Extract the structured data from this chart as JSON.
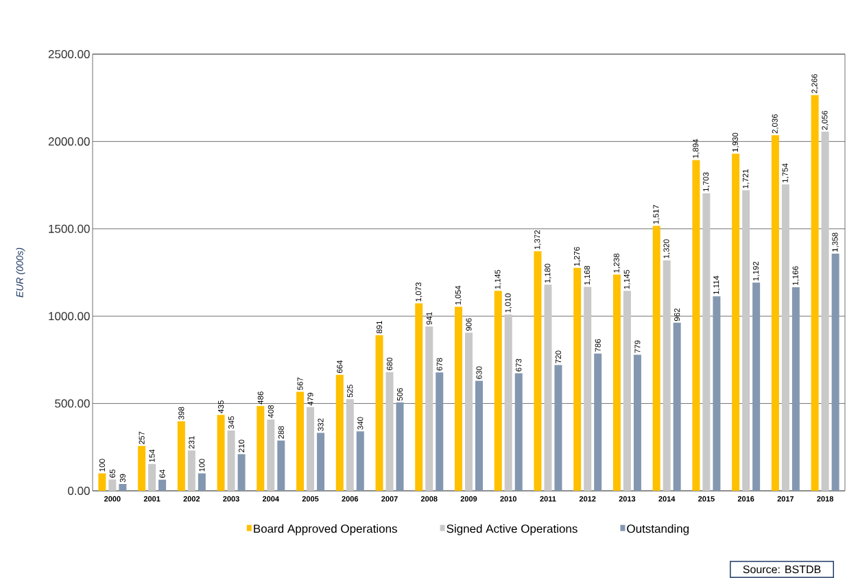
{
  "chart_data": {
    "type": "bar",
    "ylabel": "EUR (000s)",
    "categories": [
      "2000",
      "2001",
      "2002",
      "2003",
      "2004",
      "2005",
      "2006",
      "2007",
      "2008",
      "2009",
      "2010",
      "2011",
      "2012",
      "2013",
      "2014",
      "2015",
      "2016",
      "2017",
      "2018"
    ],
    "series": [
      {
        "name": "Board Approved Operations",
        "color": "#ffc000",
        "values": [
          100,
          257,
          398,
          435,
          486,
          567,
          664,
          891,
          1073,
          1054,
          1145,
          1372,
          1276,
          1238,
          1517,
          1894,
          1930,
          2036,
          2266
        ],
        "value_labels": [
          "100",
          "257",
          "398",
          "435",
          "486",
          "567",
          "664",
          "891",
          "1,073",
          "1,054",
          "1,145",
          "1,372",
          "1,276",
          "1,238",
          "1,517",
          "1,894",
          "1,930",
          "2,036",
          "2,266"
        ]
      },
      {
        "name": "Signed Active Operations",
        "color": "#c9c9c9",
        "values": [
          65,
          154,
          231,
          345,
          408,
          479,
          525,
          680,
          941,
          906,
          1010,
          1180,
          1168,
          1145,
          1320,
          1703,
          1721,
          1754,
          2056
        ],
        "value_labels": [
          "65",
          "154",
          "231",
          "345",
          "408",
          "479",
          "525",
          "680",
          "941",
          "906",
          "1,010",
          "1,180",
          "1,168",
          "1,145",
          "1,320",
          "1,703",
          "1,721",
          "1,754",
          "2,056"
        ]
      },
      {
        "name": "Outstanding",
        "color": "#8497b0",
        "values": [
          39,
          64,
          100,
          210,
          288,
          332,
          340,
          506,
          678,
          630,
          673,
          720,
          786,
          779,
          962,
          1114,
          1192,
          1166,
          1358
        ],
        "value_labels": [
          "39",
          "64",
          "100",
          "210",
          "288",
          "332",
          "340",
          "506",
          "678",
          "630",
          "673",
          "720",
          "786",
          "779",
          "962",
          "1,114",
          "1,192",
          "1,166",
          "1,358"
        ]
      }
    ],
    "ylim": [
      0,
      2500
    ],
    "yticks": [
      {
        "value": 0,
        "label": "0.00"
      },
      {
        "value": 500,
        "label": "500.00"
      },
      {
        "value": 1000,
        "label": "1000.00"
      },
      {
        "value": 1500,
        "label": "1500.00"
      },
      {
        "value": 2000,
        "label": "2000.00"
      },
      {
        "value": 2500,
        "label": "2500.00"
      }
    ],
    "grid": "y",
    "legend": "bottom",
    "annotations": [
      "Source: BSTDB"
    ]
  }
}
